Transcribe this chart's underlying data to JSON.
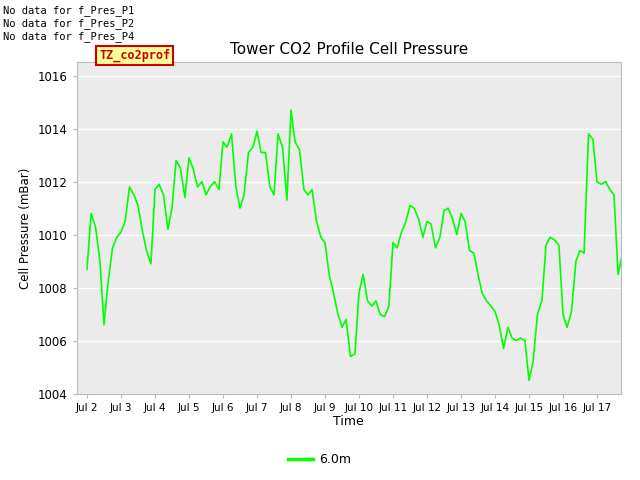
{
  "title": "Tower CO2 Profile Cell Pressure",
  "xlabel": "Time",
  "ylabel": "Cell Pressure (mBar)",
  "ylim": [
    1004,
    1016.5
  ],
  "line_color": "#00ff00",
  "legend_label": "6.0m",
  "no_data_texts": [
    "No data for f_Pres_P1",
    "No data for f_Pres_P2",
    "No data for f_Pres_P4"
  ],
  "legend_box_text": "TZ_co2prof",
  "legend_box_bg": "#ffff99",
  "legend_box_border": "#cc0000",
  "yticks": [
    1004,
    1006,
    1008,
    1010,
    1012,
    1014,
    1016
  ],
  "xtick_labels": [
    "Jul 2",
    "Jul 3",
    "Jul 4",
    "Jul 5",
    "Jul 6",
    "Jul 7",
    "Jul 8",
    "Jul 9",
    "Jul 10",
    "Jul 11",
    "Jul 12",
    "Jul 13",
    "Jul 14",
    "Jul 15",
    "Jul 16",
    "Jul 17"
  ],
  "x_data": [
    0,
    0.12,
    0.25,
    0.38,
    0.5,
    0.62,
    0.75,
    0.88,
    1.0,
    1.12,
    1.25,
    1.38,
    1.5,
    1.62,
    1.75,
    1.88,
    2.0,
    2.12,
    2.25,
    2.38,
    2.5,
    2.62,
    2.75,
    2.88,
    3.0,
    3.12,
    3.25,
    3.38,
    3.5,
    3.62,
    3.75,
    3.88,
    4.0,
    4.12,
    4.25,
    4.38,
    4.5,
    4.62,
    4.75,
    4.88,
    5.0,
    5.12,
    5.25,
    5.38,
    5.5,
    5.62,
    5.75,
    5.88,
    6.0,
    6.12,
    6.25,
    6.38,
    6.5,
    6.62,
    6.75,
    6.88,
    7.0,
    7.12,
    7.25,
    7.38,
    7.5,
    7.62,
    7.75,
    7.88,
    8.0,
    8.12,
    8.25,
    8.38,
    8.5,
    8.62,
    8.75,
    8.88,
    9.0,
    9.12,
    9.25,
    9.38,
    9.5,
    9.62,
    9.75,
    9.88,
    10.0,
    10.12,
    10.25,
    10.38,
    10.5,
    10.62,
    10.75,
    10.88,
    11.0,
    11.12,
    11.25,
    11.38,
    11.5,
    11.62,
    11.75,
    11.88,
    12.0,
    12.12,
    12.25,
    12.38,
    12.5,
    12.62,
    12.75,
    12.88,
    13.0,
    13.12,
    13.25,
    13.38,
    13.5,
    13.62,
    13.75,
    13.88,
    14.0,
    14.12,
    14.25,
    14.38,
    14.5,
    14.62,
    14.75,
    14.88,
    15.0,
    15.12,
    15.25,
    15.38,
    15.5,
    15.62,
    15.75,
    15.88
  ],
  "y_data": [
    1008.7,
    1010.8,
    1010.3,
    1009.0,
    1006.6,
    1008.2,
    1009.5,
    1009.9,
    1010.1,
    1010.5,
    1011.8,
    1011.5,
    1011.1,
    1010.2,
    1009.4,
    1008.9,
    1011.7,
    1011.9,
    1011.5,
    1010.2,
    1011.0,
    1012.8,
    1012.5,
    1011.4,
    1012.9,
    1012.5,
    1011.8,
    1012.0,
    1011.5,
    1011.8,
    1012.0,
    1011.7,
    1013.5,
    1013.3,
    1013.8,
    1011.8,
    1011.0,
    1011.5,
    1013.1,
    1013.3,
    1013.9,
    1013.1,
    1013.1,
    1011.8,
    1011.5,
    1013.8,
    1013.3,
    1011.3,
    1014.7,
    1013.5,
    1013.2,
    1011.7,
    1011.5,
    1011.7,
    1010.5,
    1009.9,
    1009.7,
    1008.5,
    1007.8,
    1007.0,
    1006.5,
    1006.8,
    1005.4,
    1005.5,
    1007.8,
    1008.5,
    1007.5,
    1007.3,
    1007.5,
    1007.0,
    1006.9,
    1007.3,
    1009.7,
    1009.5,
    1010.1,
    1010.5,
    1011.1,
    1011.0,
    1010.6,
    1009.9,
    1010.5,
    1010.4,
    1009.5,
    1009.9,
    1010.9,
    1011.0,
    1010.6,
    1010.0,
    1010.8,
    1010.5,
    1009.4,
    1009.3,
    1008.5,
    1007.8,
    1007.5,
    1007.3,
    1007.1,
    1006.6,
    1005.7,
    1006.5,
    1006.1,
    1006.0,
    1006.1,
    1006.0,
    1004.5,
    1005.2,
    1007.0,
    1007.5,
    1009.6,
    1009.9,
    1009.8,
    1009.6,
    1007.0,
    1006.5,
    1007.1,
    1009.0,
    1009.4,
    1009.3,
    1013.8,
    1013.6,
    1012.0,
    1011.9,
    1012.0,
    1011.7,
    1011.5,
    1008.5,
    1009.3,
    1009.5
  ]
}
